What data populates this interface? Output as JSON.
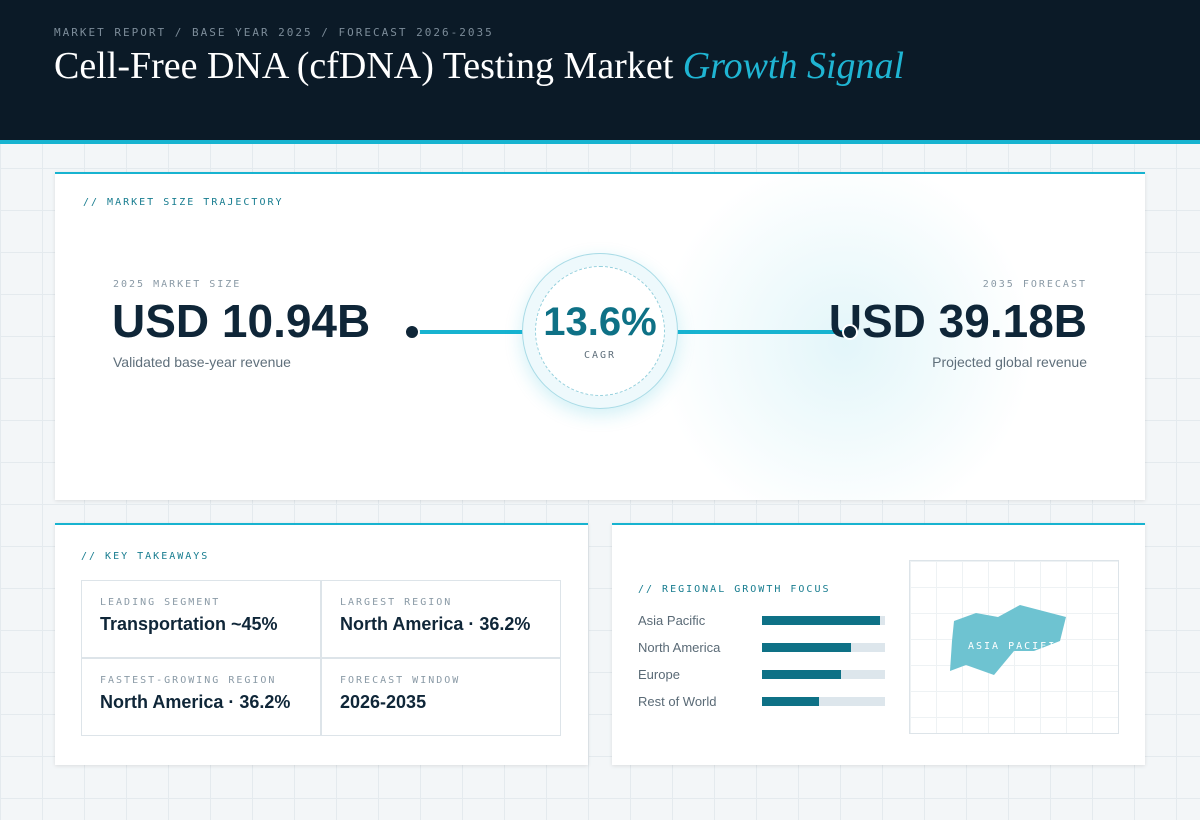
{
  "header": {
    "eyebrow": "MARKET REPORT / BASE YEAR 2025 / FORECAST 2026-2035",
    "title": "Cell-Free DNA (cfDNA) Testing Market",
    "title_accent": "Growth Signal"
  },
  "trajectory": {
    "label": "// MARKET SIZE TRAJECTORY",
    "base": {
      "label": "2025 MARKET SIZE",
      "value": "USD 10.94B",
      "caption": "Validated base-year revenue"
    },
    "cagr": {
      "value": "13.6%",
      "label": "CAGR"
    },
    "forecast": {
      "label": "2035 FORECAST",
      "value": "USD 39.18B",
      "caption": "Projected global revenue"
    }
  },
  "takeaways": {
    "label": "// KEY TAKEAWAYS",
    "items": [
      {
        "label": "LEADING SEGMENT",
        "value": "Transportation ~45%"
      },
      {
        "label": "LARGEST REGION",
        "value": "North America · 36.2%"
      },
      {
        "label": "FASTEST-GROWING REGION",
        "value": "North America · 36.2%"
      },
      {
        "label": "FORECAST WINDOW",
        "value": "2026-2035"
      }
    ]
  },
  "regional": {
    "label": "// REGIONAL GROWTH FOCUS",
    "range": [
      0,
      100
    ],
    "color": "#0e7186",
    "track_color": "#dde6ec",
    "bars": [
      {
        "name": "Asia Pacific",
        "value": 96
      },
      {
        "name": "North America",
        "value": 72
      },
      {
        "name": "Europe",
        "value": 64
      },
      {
        "name": "Rest of World",
        "value": 46
      }
    ],
    "map_label": "ASIA PACIFIC"
  }
}
